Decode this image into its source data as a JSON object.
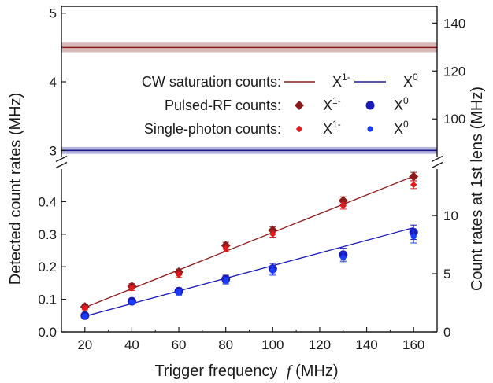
{
  "chart_data": {
    "type": "scatter",
    "xlabel": "Trigger frequency",
    "xlabel_symbol": "f",
    "xlabel_unit": "(MHz)",
    "ylabel_left": "Detected count rates (MHz)",
    "ylabel_right": "Count rates at 1st lens (MHz)",
    "xlim": [
      10,
      170
    ],
    "xticks": [
      20,
      40,
      60,
      80,
      100,
      120,
      140,
      160
    ],
    "bottom_panel": {
      "ylim_left": [
        0,
        0.5
      ],
      "yticks_left": [
        0.0,
        0.1,
        0.2,
        0.3,
        0.4
      ],
      "ylim_right": [
        0,
        14
      ],
      "yticks_right": [
        0,
        5,
        10
      ]
    },
    "top_panel": {
      "ylim_left": [
        2.9,
        5.1
      ],
      "yticks_left": [
        3,
        4,
        5
      ],
      "ylim_right": [
        84,
        147
      ],
      "yticks_right": [
        100,
        120,
        140
      ]
    },
    "cw_saturation": [
      {
        "name": "X1-",
        "value": 4.5,
        "band": [
          4.43,
          4.57
        ],
        "color": "#8b1a1a",
        "band_color": "#d9b8b8"
      },
      {
        "name": "X0",
        "value": 3.0,
        "band": [
          2.95,
          3.05
        ],
        "color": "#1a1a8b",
        "band_color": "#b3b3dd"
      }
    ],
    "series": [
      {
        "name": "X1- pulsed-RF",
        "marker": "diamond",
        "color": "#8b1a1a",
        "x": [
          20,
          40,
          60,
          80,
          100,
          130,
          160
        ],
        "y": [
          0.077,
          0.14,
          0.184,
          0.265,
          0.312,
          0.403,
          0.477
        ],
        "err": [
          0.006,
          0.008,
          0.009,
          0.01,
          0.01,
          0.012,
          0.013
        ]
      },
      {
        "name": "X1- single-photon",
        "marker": "small-diamond",
        "color": "#e01a1a",
        "x": [
          20,
          40,
          60,
          80,
          100,
          130,
          160
        ],
        "y": [
          0.073,
          0.134,
          0.175,
          0.255,
          0.3,
          0.387,
          0.452
        ],
        "err": [
          0.005,
          0.007,
          0.008,
          0.008,
          0.009,
          0.01,
          0.012
        ]
      },
      {
        "name": "X0 pulsed-RF",
        "marker": "circle",
        "color": "#1a1ab4",
        "x": [
          20,
          40,
          60,
          80,
          100,
          130,
          160
        ],
        "y": [
          0.05,
          0.094,
          0.125,
          0.162,
          0.194,
          0.237,
          0.306
        ],
        "err": [
          0.005,
          0.008,
          0.01,
          0.012,
          0.016,
          0.02,
          0.022
        ]
      },
      {
        "name": "X0 single-photon",
        "marker": "small-circle",
        "color": "#1a3cff",
        "x": [
          20,
          40,
          60,
          80,
          100,
          130,
          160
        ],
        "y": [
          0.048,
          0.091,
          0.121,
          0.157,
          0.188,
          0.228,
          0.293
        ],
        "err": [
          0.004,
          0.006,
          0.008,
          0.01,
          0.014,
          0.016,
          0.02
        ]
      }
    ],
    "fits": [
      {
        "name": "X1- fit",
        "color": "#8b1a1a",
        "x": [
          20,
          160
        ],
        "y": [
          0.075,
          0.478
        ]
      },
      {
        "name": "X0 fit",
        "color": "#1a1ab4",
        "x": [
          20,
          160
        ],
        "y": [
          0.048,
          0.32
        ]
      }
    ],
    "legend": {
      "placement": "top panel center",
      "rows": [
        {
          "label": "CW saturation counts:",
          "entries": [
            {
              "marker": "line",
              "color": "#8b1a1a",
              "text": "X",
              "sup": "1-"
            },
            {
              "marker": "line",
              "color": "#1a1a8b",
              "text": "X",
              "sup": "0"
            }
          ]
        },
        {
          "label": "Pulsed-RF counts:",
          "entries": [
            {
              "marker": "diamond",
              "color": "#8b1a1a",
              "text": "X",
              "sup": "1-"
            },
            {
              "marker": "circle",
              "color": "#1a1ab4",
              "text": "X",
              "sup": "0"
            }
          ]
        },
        {
          "label": "Single-photon counts:",
          "entries": [
            {
              "marker": "small-diamond",
              "color": "#e01a1a",
              "text": "X",
              "sup": "1-"
            },
            {
              "marker": "small-circle",
              "color": "#1a3cff",
              "text": "X",
              "sup": "0"
            }
          ]
        }
      ]
    }
  }
}
